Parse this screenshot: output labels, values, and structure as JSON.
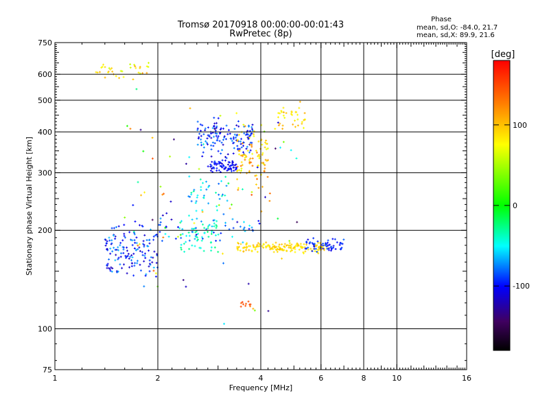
{
  "chart_data": {
    "type": "scatter",
    "title": "Tromsø 20170918 00:00:00-00:01:43",
    "subtitle": "RwPretec (8p)",
    "xlabel": "Frequency [MHz]",
    "ylabel": "Stationary phase Virtual Height [km]",
    "x_scale": "log",
    "y_scale": "log",
    "xlim": [
      1,
      16
    ],
    "ylim": [
      75,
      750
    ],
    "x_ticks": [
      1,
      2,
      4,
      6,
      8,
      10,
      16
    ],
    "y_ticks": [
      75,
      100,
      200,
      300,
      400,
      500,
      600,
      750
    ],
    "x_gridlines": [
      2,
      4,
      6,
      8,
      10
    ],
    "y_gridlines": [
      100,
      200,
      300,
      400,
      500,
      600
    ],
    "grid": true,
    "phase_info": {
      "heading": "Phase",
      "line_o": "mean, sd,O: -84.0, 21.7",
      "line_x": "mean, sd,X:  89.9, 21.6"
    },
    "colorbar": {
      "label": "[deg]",
      "range": [
        -180,
        180
      ],
      "ticks": [
        100,
        0,
        -100
      ],
      "colors": [
        "#ff0000",
        "#ff8000",
        "#ffff00",
        "#00ff00",
        "#00ffff",
        "#0000ff",
        "#400060",
        "#000000"
      ]
    },
    "clusters": [
      {
        "name": "o-low",
        "xr": [
          1.4,
          2.0
        ],
        "yr": [
          140,
          215
        ],
        "phase": [
          -120,
          -60
        ],
        "n": 150
      },
      {
        "name": "o-low-cyan",
        "xr": [
          2.3,
          3.0
        ],
        "yr": [
          165,
          220
        ],
        "phase": [
          -55,
          -20
        ],
        "n": 50
      },
      {
        "name": "o-f1",
        "xr": [
          2.8,
          3.4
        ],
        "yr": [
          300,
          330
        ],
        "phase": [
          -120,
          -90
        ],
        "n": 70
      },
      {
        "name": "o-f2",
        "xr": [
          2.6,
          3.8
        ],
        "yr": [
          330,
          450
        ],
        "phase": [
          -120,
          -70
        ],
        "n": 140
      },
      {
        "name": "o-mid",
        "xr": [
          2.4,
          3.2
        ],
        "yr": [
          220,
          300
        ],
        "phase": [
          -80,
          -30
        ],
        "n": 40
      },
      {
        "name": "x-band",
        "xr": [
          3.4,
          6.3
        ],
        "yr": [
          170,
          185
        ],
        "phase": [
          80,
          110
        ],
        "n": 160
      },
      {
        "name": "o-band",
        "xr": [
          5.4,
          7.0
        ],
        "yr": [
          170,
          190
        ],
        "phase": [
          -110,
          -80
        ],
        "n": 60
      },
      {
        "name": "x-f",
        "xr": [
          3.4,
          4.2
        ],
        "yr": [
          260,
          420
        ],
        "phase": [
          70,
          140
        ],
        "n": 90
      },
      {
        "name": "x-top",
        "xr": [
          4.4,
          5.4
        ],
        "yr": [
          400,
          500
        ],
        "phase": [
          70,
          120
        ],
        "n": 35
      },
      {
        "name": "top-left",
        "xr": [
          1.3,
          1.9
        ],
        "yr": [
          570,
          660
        ],
        "phase": [
          60,
          120
        ],
        "n": 35
      },
      {
        "name": "mixed",
        "xr": [
          2.0,
          4.0
        ],
        "yr": [
          180,
          230
        ],
        "phase": [
          -120,
          -40
        ],
        "n": 60
      },
      {
        "name": "x-low",
        "xr": [
          3.5,
          3.8
        ],
        "yr": [
          115,
          122
        ],
        "phase": [
          130,
          160
        ],
        "n": 10
      },
      {
        "name": "scatter",
        "xr": [
          1.6,
          5.2
        ],
        "yr": [
          95,
          640
        ],
        "phase": [
          -150,
          150
        ],
        "n": 80
      }
    ]
  }
}
